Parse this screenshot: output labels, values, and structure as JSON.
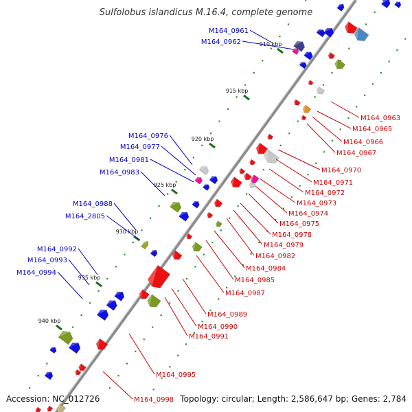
{
  "title": "Sulfolobus islandicus M.16.4, complete genome",
  "footer": {
    "accession": "Accession: NC_012726",
    "info": "Topology: circular; Length: 2,586,647 bp; Genes: 2,784"
  },
  "colors": {
    "forward_label": "#0000cc",
    "reverse_label": "#cc0000",
    "backbone": "#8a8a8a",
    "tick_dot": "#2e8b2e"
  },
  "ticks": [
    {
      "label": "910 kbp"
    },
    {
      "label": "915 kbp"
    },
    {
      "label": "920 kbp"
    },
    {
      "label": "925 kbp"
    },
    {
      "label": "930 kbp"
    },
    {
      "label": "935 kbp"
    },
    {
      "label": "940 kbp"
    }
  ],
  "forward_labels": [
    {
      "text": "M164_0961"
    },
    {
      "text": "M164_0962"
    },
    {
      "text": "M164_0976"
    },
    {
      "text": "M164_0977"
    },
    {
      "text": "M164_0981"
    },
    {
      "text": "M164_0983"
    },
    {
      "text": "M164_0988"
    },
    {
      "text": "M164_2805"
    },
    {
      "text": "M164_0992"
    },
    {
      "text": "M164_0993"
    },
    {
      "text": "M164_0994"
    }
  ],
  "reverse_labels": [
    {
      "text": "M164_0963"
    },
    {
      "text": "M164_0965"
    },
    {
      "text": "M164_0966"
    },
    {
      "text": "M164_0967"
    },
    {
      "text": "M164_0970"
    },
    {
      "text": "M164_0971"
    },
    {
      "text": "M164_0972"
    },
    {
      "text": "M164_0973"
    },
    {
      "text": "M164_0974"
    },
    {
      "text": "M164_0975"
    },
    {
      "text": "M164_0978"
    },
    {
      "text": "M164_0979"
    },
    {
      "text": "M164_0982"
    },
    {
      "text": "M164_0984"
    },
    {
      "text": "M164_0985"
    },
    {
      "text": "M164_0987"
    },
    {
      "text": "M164_0989"
    },
    {
      "text": "M164_0990"
    },
    {
      "text": "M164_0991"
    },
    {
      "text": "M164_0995"
    },
    {
      "text": "M164_0998"
    }
  ]
}
